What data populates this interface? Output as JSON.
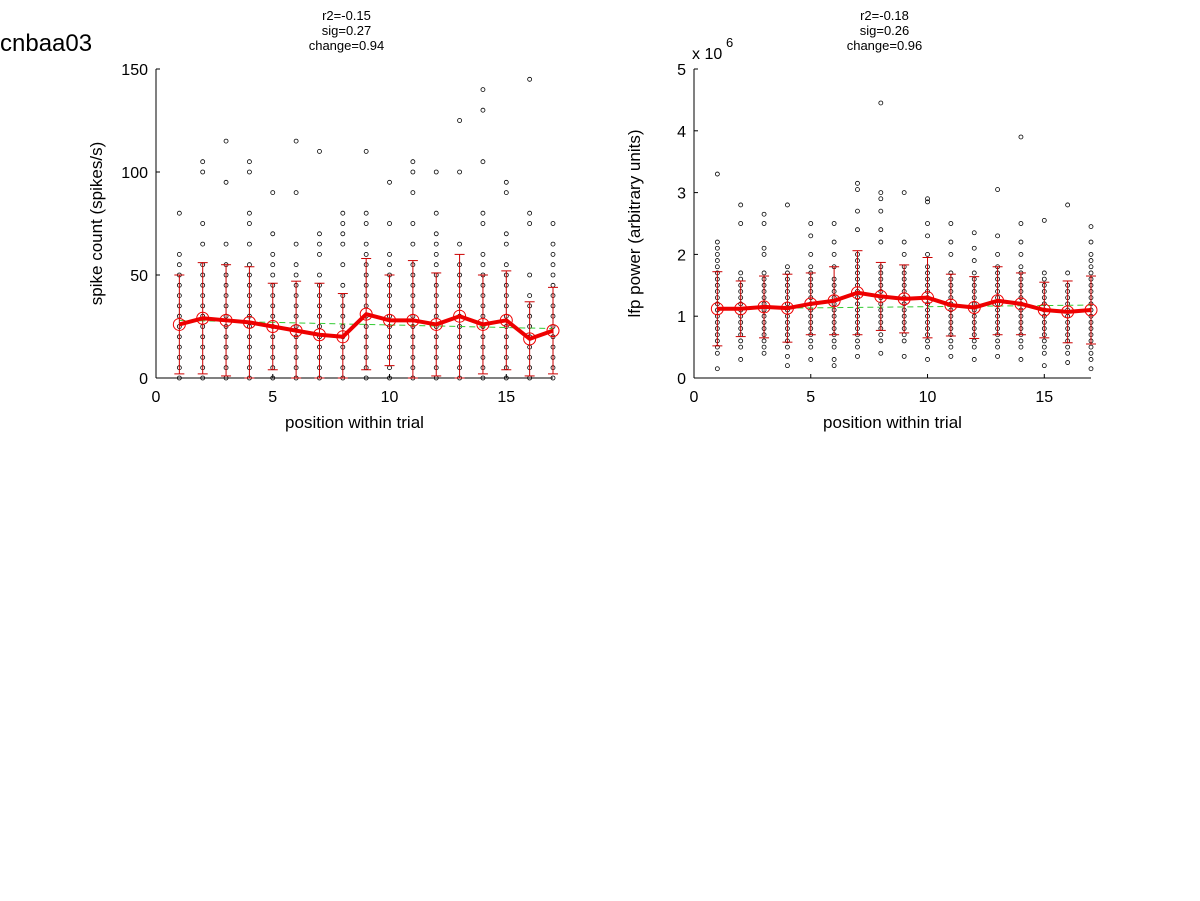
{
  "page": {
    "title": "cnbaa03"
  },
  "chart_data": [
    {
      "type": "scatter",
      "annotation": [
        "r2=-0.15",
        "sig=0.27",
        "change=0.94"
      ],
      "xlabel": "position within trial",
      "ylabel": "spike count (spikes/s)",
      "exponent_label": "",
      "xlim": [
        0,
        17
      ],
      "ylim": [
        0,
        150
      ],
      "xticks": [
        0,
        5,
        10,
        15
      ],
      "yticks": [
        0,
        50,
        100,
        150
      ],
      "x": [
        1,
        2,
        3,
        4,
        5,
        6,
        7,
        8,
        9,
        10,
        11,
        12,
        13,
        14,
        15,
        16,
        17
      ],
      "mean": [
        26,
        29,
        28,
        27,
        25,
        23,
        21,
        20,
        31,
        28,
        28,
        26,
        30,
        26,
        28,
        19,
        23
      ],
      "std": [
        24,
        27,
        27,
        27,
        21,
        24,
        25,
        21,
        27,
        22,
        29,
        25,
        30,
        24,
        24,
        18,
        21
      ],
      "trend": [
        28,
        24
      ],
      "scatter_points": [
        [
          0,
          5,
          10,
          15,
          20,
          25,
          30,
          35,
          40,
          45,
          50,
          55,
          60,
          80
        ],
        [
          0,
          5,
          10,
          15,
          20,
          25,
          30,
          35,
          40,
          45,
          50,
          55,
          65,
          75,
          100,
          105
        ],
        [
          0,
          5,
          10,
          15,
          20,
          25,
          30,
          35,
          40,
          45,
          50,
          55,
          65,
          95,
          115
        ],
        [
          0,
          5,
          10,
          15,
          20,
          25,
          30,
          35,
          40,
          45,
          50,
          55,
          65,
          75,
          80,
          100,
          105
        ],
        [
          0,
          5,
          10,
          15,
          20,
          25,
          30,
          35,
          40,
          45,
          50,
          55,
          60,
          70,
          90
        ],
        [
          0,
          5,
          10,
          15,
          20,
          25,
          30,
          35,
          40,
          45,
          50,
          55,
          65,
          90,
          115
        ],
        [
          0,
          5,
          10,
          15,
          20,
          25,
          30,
          35,
          40,
          45,
          50,
          60,
          65,
          70,
          110
        ],
        [
          0,
          5,
          10,
          15,
          20,
          25,
          30,
          35,
          40,
          45,
          55,
          65,
          70,
          75,
          80
        ],
        [
          0,
          5,
          10,
          15,
          20,
          25,
          30,
          35,
          40,
          45,
          50,
          55,
          60,
          65,
          75,
          80,
          110
        ],
        [
          0,
          5,
          10,
          15,
          20,
          25,
          30,
          35,
          40,
          45,
          50,
          55,
          60,
          75,
          95
        ],
        [
          0,
          5,
          10,
          15,
          20,
          25,
          30,
          35,
          40,
          45,
          50,
          55,
          65,
          75,
          90,
          100,
          105
        ],
        [
          0,
          5,
          10,
          15,
          20,
          25,
          30,
          35,
          40,
          45,
          50,
          55,
          60,
          65,
          70,
          80,
          100
        ],
        [
          0,
          5,
          10,
          15,
          20,
          25,
          30,
          35,
          40,
          45,
          50,
          55,
          65,
          100,
          125
        ],
        [
          0,
          5,
          10,
          15,
          20,
          25,
          30,
          35,
          40,
          45,
          50,
          55,
          60,
          75,
          80,
          105,
          130,
          140
        ],
        [
          0,
          5,
          10,
          15,
          20,
          25,
          30,
          35,
          40,
          45,
          50,
          55,
          65,
          70,
          90,
          95
        ],
        [
          0,
          5,
          10,
          15,
          20,
          25,
          30,
          35,
          40,
          50,
          75,
          80,
          145
        ],
        [
          0,
          5,
          10,
          15,
          20,
          25,
          30,
          35,
          40,
          45,
          50,
          55,
          60,
          65,
          75
        ]
      ]
    },
    {
      "type": "scatter",
      "annotation": [
        "r2=-0.18",
        "sig=0.26",
        "change=0.96"
      ],
      "xlabel": "position within trial",
      "ylabel": "lfp power (arbitrary units)",
      "exponent_label": "x 10",
      "exponent_power": "6",
      "xlim": [
        0,
        17
      ],
      "ylim": [
        0,
        5
      ],
      "xticks": [
        0,
        5,
        10,
        15
      ],
      "yticks": [
        0,
        1,
        2,
        3,
        4,
        5
      ],
      "x": [
        1,
        2,
        3,
        4,
        5,
        6,
        7,
        8,
        9,
        10,
        11,
        12,
        13,
        14,
        15,
        16,
        17
      ],
      "mean": [
        1.12,
        1.12,
        1.15,
        1.13,
        1.2,
        1.25,
        1.38,
        1.32,
        1.28,
        1.3,
        1.18,
        1.14,
        1.25,
        1.2,
        1.1,
        1.07,
        1.1
      ],
      "std": [
        0.6,
        0.45,
        0.5,
        0.55,
        0.5,
        0.55,
        0.68,
        0.55,
        0.55,
        0.65,
        0.5,
        0.5,
        0.55,
        0.5,
        0.45,
        0.5,
        0.55
      ],
      "trend": [
        1.12,
        1.18
      ],
      "scatter_points": [
        [
          0.15,
          0.4,
          0.5,
          0.6,
          0.7,
          0.8,
          0.9,
          1.0,
          1.1,
          1.2,
          1.3,
          1.4,
          1.5,
          1.6,
          1.7,
          1.8,
          1.9,
          2.0,
          2.1,
          2.2,
          3.3
        ],
        [
          0.3,
          0.5,
          0.6,
          0.7,
          0.8,
          0.9,
          1.0,
          1.1,
          1.2,
          1.3,
          1.4,
          1.5,
          1.6,
          1.7,
          2.5,
          2.8
        ],
        [
          0.4,
          0.5,
          0.6,
          0.7,
          0.8,
          0.9,
          1.0,
          1.1,
          1.2,
          1.3,
          1.4,
          1.5,
          1.6,
          1.7,
          2.0,
          2.1,
          2.5,
          2.65
        ],
        [
          0.2,
          0.35,
          0.5,
          0.6,
          0.7,
          0.8,
          0.9,
          1.0,
          1.1,
          1.2,
          1.3,
          1.4,
          1.5,
          1.6,
          1.7,
          1.8,
          2.8
        ],
        [
          0.3,
          0.5,
          0.6,
          0.7,
          0.8,
          0.9,
          1.0,
          1.1,
          1.2,
          1.3,
          1.4,
          1.5,
          1.6,
          1.7,
          1.8,
          2.0,
          2.3,
          2.5
        ],
        [
          0.2,
          0.3,
          0.5,
          0.6,
          0.7,
          0.8,
          0.9,
          1.0,
          1.1,
          1.2,
          1.3,
          1.4,
          1.5,
          1.6,
          1.8,
          2.0,
          2.2,
          2.5
        ],
        [
          0.35,
          0.5,
          0.6,
          0.7,
          0.8,
          0.9,
          1.0,
          1.1,
          1.2,
          1.3,
          1.4,
          1.5,
          1.6,
          1.7,
          1.8,
          1.9,
          2.0,
          2.4,
          2.7,
          3.05,
          3.15
        ],
        [
          0.4,
          0.6,
          0.7,
          0.8,
          0.9,
          1.0,
          1.1,
          1.2,
          1.3,
          1.4,
          1.5,
          1.6,
          1.7,
          1.8,
          2.2,
          2.4,
          2.7,
          2.9,
          3.0,
          4.45
        ],
        [
          0.35,
          0.6,
          0.7,
          0.8,
          0.9,
          1.0,
          1.1,
          1.2,
          1.3,
          1.4,
          1.5,
          1.6,
          1.7,
          1.8,
          2.0,
          2.2,
          3.0
        ],
        [
          0.3,
          0.5,
          0.6,
          0.7,
          0.8,
          0.9,
          1.0,
          1.1,
          1.2,
          1.3,
          1.4,
          1.5,
          1.6,
          1.7,
          1.8,
          2.0,
          2.3,
          2.5,
          2.85,
          2.9
        ],
        [
          0.35,
          0.5,
          0.6,
          0.7,
          0.8,
          0.9,
          1.0,
          1.1,
          1.2,
          1.3,
          1.4,
          1.5,
          1.6,
          1.7,
          2.0,
          2.2,
          2.5
        ],
        [
          0.3,
          0.5,
          0.6,
          0.7,
          0.8,
          0.9,
          1.0,
          1.1,
          1.2,
          1.3,
          1.4,
          1.5,
          1.6,
          1.7,
          1.9,
          2.1,
          2.35
        ],
        [
          0.35,
          0.5,
          0.6,
          0.7,
          0.8,
          0.9,
          1.0,
          1.1,
          1.2,
          1.3,
          1.4,
          1.5,
          1.6,
          1.7,
          1.8,
          2.0,
          2.3,
          3.05
        ],
        [
          0.3,
          0.5,
          0.6,
          0.7,
          0.8,
          0.9,
          1.0,
          1.1,
          1.2,
          1.3,
          1.4,
          1.5,
          1.6,
          1.7,
          1.8,
          2.0,
          2.2,
          2.5,
          3.9
        ],
        [
          0.2,
          0.4,
          0.5,
          0.6,
          0.7,
          0.8,
          0.9,
          1.0,
          1.1,
          1.2,
          1.3,
          1.4,
          1.5,
          1.6,
          1.7,
          2.55
        ],
        [
          0.25,
          0.4,
          0.5,
          0.6,
          0.7,
          0.8,
          0.9,
          1.0,
          1.1,
          1.2,
          1.3,
          1.4,
          1.5,
          1.7,
          2.8
        ],
        [
          0.15,
          0.3,
          0.4,
          0.5,
          0.6,
          0.7,
          0.8,
          0.9,
          1.0,
          1.1,
          1.2,
          1.3,
          1.4,
          1.5,
          1.6,
          1.7,
          1.8,
          1.9,
          2.0,
          2.2,
          2.45
        ]
      ]
    }
  ]
}
